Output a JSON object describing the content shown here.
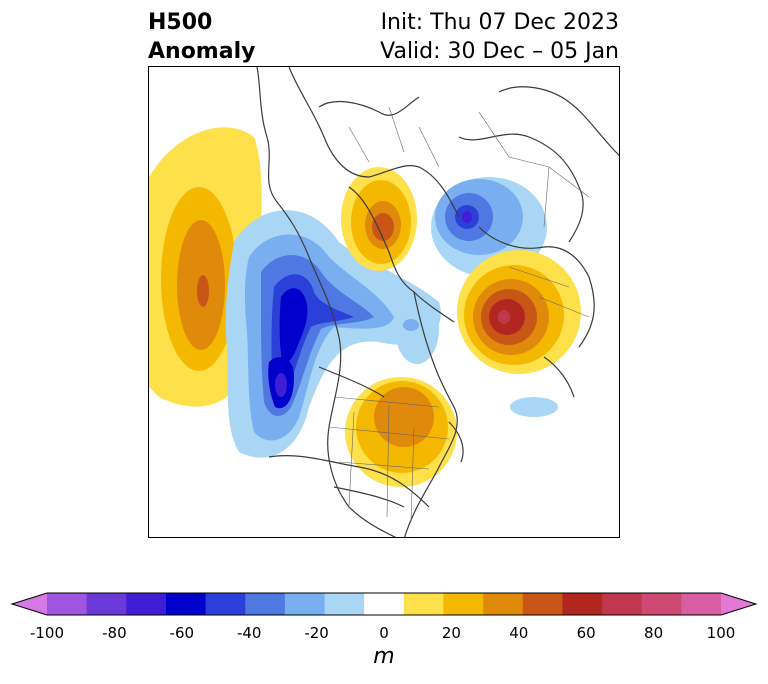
{
  "title": {
    "line1": "H500",
    "line2": "Anomaly"
  },
  "subtitle": {
    "init": "Init: Thu 07 Dec 2023",
    "valid": "Valid: 30 Dec – 05 Jan"
  },
  "colorbar": {
    "units": "m",
    "ticks": [
      "-100",
      "-80",
      "-60",
      "-40",
      "-20",
      "0",
      "20",
      "40",
      "60",
      "80",
      "100"
    ],
    "levels": [
      -100,
      -90,
      -80,
      -70,
      -60,
      -50,
      -40,
      -30,
      -20,
      -10,
      10,
      20,
      30,
      40,
      50,
      60,
      70,
      80,
      90,
      100
    ],
    "colors": [
      "#d479e6",
      "#9f55e0",
      "#6b39d7",
      "#3f1ed6",
      "#0000cc",
      "#2b40d9",
      "#4f78e3",
      "#79aef0",
      "#a9d6f5",
      "#ffffff",
      "#fee04a",
      "#f5b801",
      "#e08a0b",
      "#c85617",
      "#b1261f",
      "#c0384e",
      "#cd4a75",
      "#d75ea3",
      "#e478d6"
    ],
    "extend": "both"
  },
  "map": {
    "field": "500 hPa geopotential height anomaly",
    "projection": "north-polar-stereographic"
  }
}
